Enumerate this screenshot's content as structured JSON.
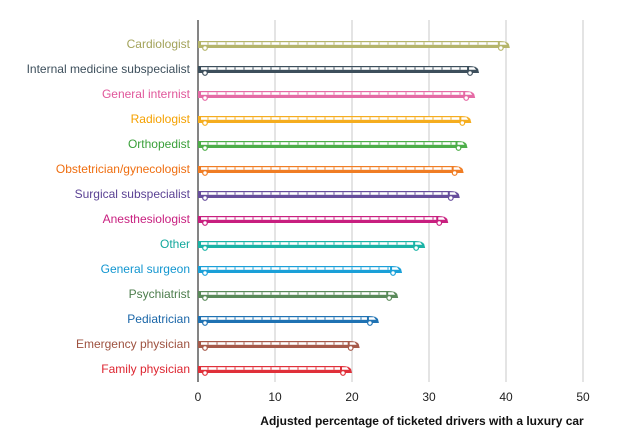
{
  "chart_data": {
    "type": "bar",
    "title": "",
    "xlabel": "Adjusted percentage of ticketed drivers with a luxury car",
    "ylabel": "",
    "xlim": [
      0,
      50
    ],
    "xticks": [
      0,
      10,
      20,
      30,
      40,
      50
    ],
    "grid": true,
    "orientation": "horizontal",
    "categories": [
      "Cardiologist",
      "Internal medicine subspecialist",
      "General internist",
      "Radiologist",
      "Orthopedist",
      "Obstetrician/gynecologist",
      "Surgical subspecialist",
      "Anesthesiologist",
      "Other",
      "General surgeon",
      "Psychiatrist",
      "Pediatrician",
      "Emergency physician",
      "Family physician"
    ],
    "values": [
      40.5,
      36.5,
      36,
      35.5,
      35,
      34.5,
      34,
      32.5,
      29.5,
      26.5,
      26,
      23.5,
      21,
      20
    ],
    "colors": [
      "#b5b56a",
      "#3d4f5c",
      "#e56aa5",
      "#f5ad1f",
      "#4dae49",
      "#f07d24",
      "#674e9c",
      "#c81f7f",
      "#1ab3a6",
      "#1aa0d8",
      "#5a8a5a",
      "#1f72b3",
      "#a65a4a",
      "#e0303a"
    ],
    "label_colors": [
      "#a3a35a",
      "#3d4f5c",
      "#e0569a",
      "#f5a100",
      "#3aa03a",
      "#ef6e10",
      "#5b4294",
      "#c81f7f",
      "#12a89c",
      "#1296d0",
      "#4c7d4c",
      "#1a66a8",
      "#9e5240",
      "#dd2530"
    ]
  }
}
